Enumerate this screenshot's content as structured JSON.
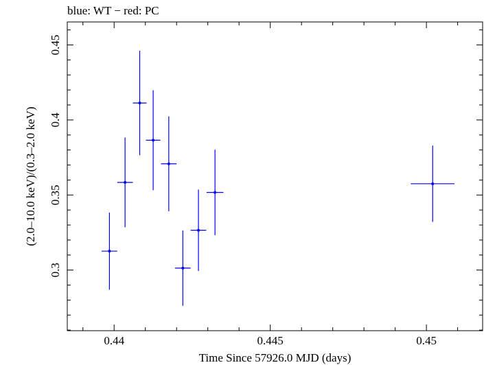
{
  "chart_data": {
    "type": "scatter",
    "title": "blue: WT − red: PC",
    "xlabel": "Time Since 57926.0 MJD (days)",
    "ylabel": "(2.0–10.0 keV)/(0.3–2.0 keV)",
    "xlim": [
      0.4385,
      0.4518
    ],
    "ylim": [
      0.2596,
      0.4653
    ],
    "x_ticks": [
      0.44,
      0.445,
      0.45
    ],
    "x_tick_labels": [
      "0.44",
      "0.445",
      "0.45"
    ],
    "y_ticks": [
      0.3,
      0.35,
      0.4,
      0.45
    ],
    "y_tick_labels": [
      "0.3",
      "0.35",
      "0.4",
      "0.45"
    ],
    "grid": false,
    "color": "#0000ee",
    "series": [
      {
        "points": [
          {
            "x": 0.43985,
            "xerr": 0.00025,
            "y": 0.3126,
            "yerr": 0.0257
          },
          {
            "x": 0.44035,
            "xerr": 0.00025,
            "y": 0.3584,
            "yerr": 0.0299
          },
          {
            "x": 0.44082,
            "xerr": 0.00022,
            "y": 0.4113,
            "yerr": 0.0348
          },
          {
            "x": 0.44125,
            "xerr": 0.00023,
            "y": 0.3865,
            "yerr": 0.0333
          },
          {
            "x": 0.44175,
            "xerr": 0.00025,
            "y": 0.3708,
            "yerr": 0.0316
          },
          {
            "x": 0.4422,
            "xerr": 0.00025,
            "y": 0.3013,
            "yerr": 0.0251
          },
          {
            "x": 0.4427,
            "xerr": 0.00025,
            "y": 0.3265,
            "yerr": 0.0271
          },
          {
            "x": 0.44323,
            "xerr": 0.00027,
            "y": 0.3517,
            "yerr": 0.0285
          },
          {
            "x": 0.4502,
            "xerr": 0.0007,
            "y": 0.3575,
            "yerr": 0.0254
          }
        ]
      }
    ]
  }
}
